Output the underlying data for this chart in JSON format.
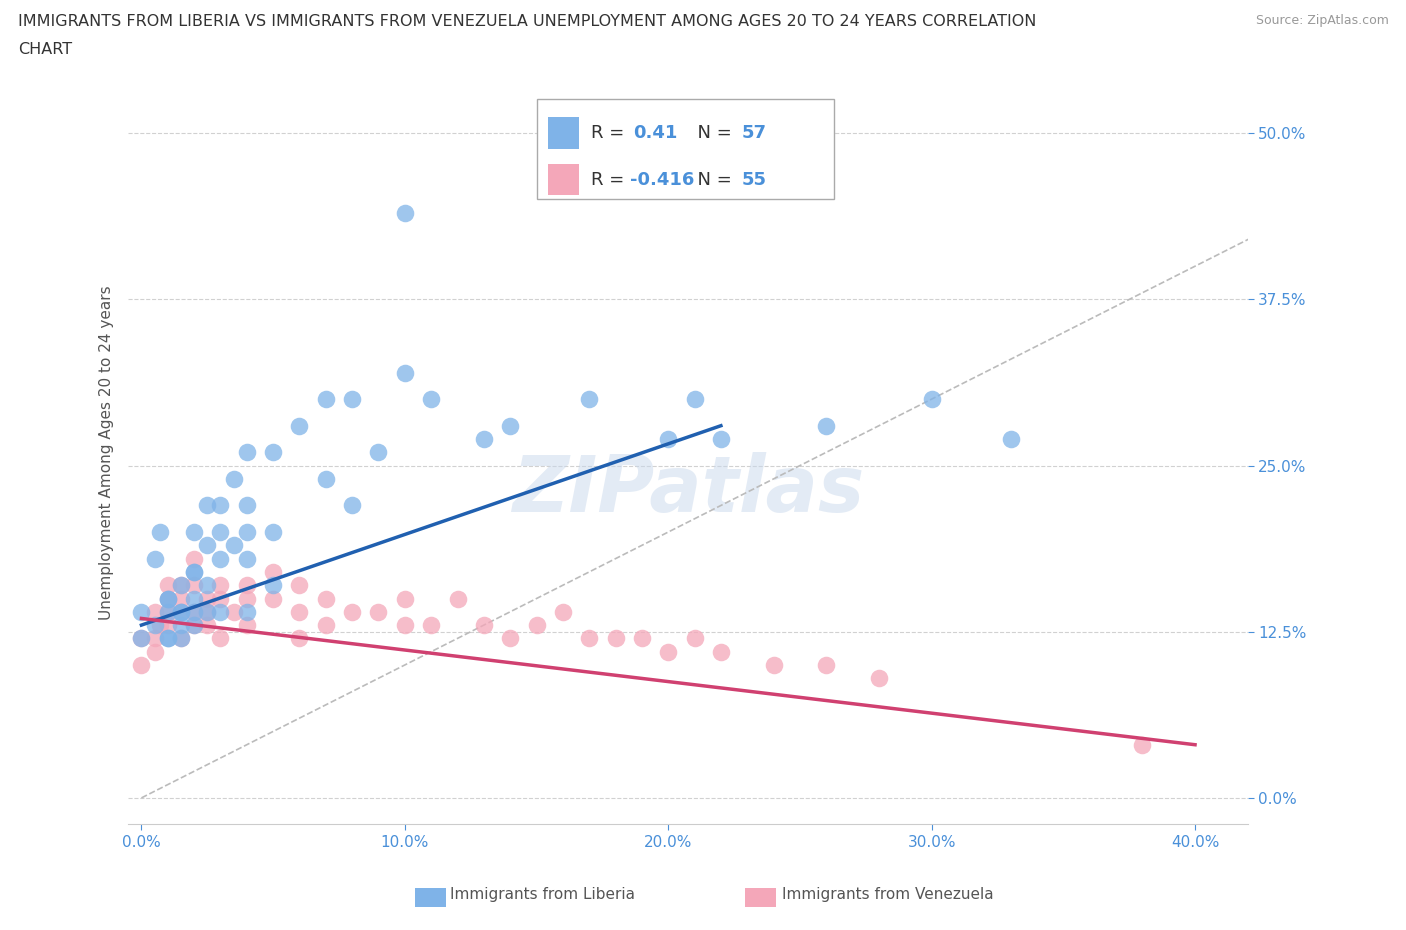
{
  "title_line1": "IMMIGRANTS FROM LIBERIA VS IMMIGRANTS FROM VENEZUELA UNEMPLOYMENT AMONG AGES 20 TO 24 YEARS CORRELATION",
  "title_line2": "CHART",
  "source_text": "Source: ZipAtlas.com",
  "ylabel": "Unemployment Among Ages 20 to 24 years",
  "xlim": [
    -0.005,
    0.42
  ],
  "ylim": [
    -0.02,
    0.54
  ],
  "xticks": [
    0.0,
    0.1,
    0.2,
    0.3,
    0.4
  ],
  "xtick_labels": [
    "0.0%",
    "10.0%",
    "20.0%",
    "30.0%",
    "40.0%"
  ],
  "ytick_positions": [
    0.0,
    0.125,
    0.25,
    0.375,
    0.5
  ],
  "ytick_labels": [
    "0.0%",
    "12.5%",
    "25.0%",
    "37.5%",
    "50.0%"
  ],
  "liberia_color": "#7fb3e8",
  "venezuela_color": "#f4a7b9",
  "liberia_line_color": "#2060b0",
  "venezuela_line_color": "#d04070",
  "diagonal_line_color": "#bbbbbb",
  "r_liberia": 0.41,
  "n_liberia": 57,
  "r_venezuela": -0.416,
  "n_venezuela": 55,
  "background_color": "#ffffff",
  "grid_color": "#cccccc",
  "watermark_text": "ZIPatlas",
  "legend_label_liberia": "Immigrants from Liberia",
  "legend_label_venezuela": "Immigrants from Venezuela",
  "liberia_scatter_x": [
    0.0,
    0.0,
    0.005,
    0.005,
    0.007,
    0.01,
    0.01,
    0.01,
    0.01,
    0.01,
    0.015,
    0.015,
    0.015,
    0.015,
    0.015,
    0.02,
    0.02,
    0.02,
    0.02,
    0.02,
    0.02,
    0.025,
    0.025,
    0.025,
    0.025,
    0.03,
    0.03,
    0.03,
    0.03,
    0.035,
    0.035,
    0.04,
    0.04,
    0.04,
    0.04,
    0.04,
    0.05,
    0.05,
    0.05,
    0.06,
    0.07,
    0.07,
    0.08,
    0.08,
    0.09,
    0.1,
    0.1,
    0.11,
    0.13,
    0.14,
    0.17,
    0.2,
    0.21,
    0.22,
    0.26,
    0.3,
    0.33
  ],
  "liberia_scatter_y": [
    0.14,
    0.12,
    0.13,
    0.18,
    0.2,
    0.15,
    0.15,
    0.14,
    0.12,
    0.12,
    0.14,
    0.16,
    0.14,
    0.13,
    0.12,
    0.2,
    0.17,
    0.17,
    0.15,
    0.14,
    0.13,
    0.22,
    0.19,
    0.16,
    0.14,
    0.22,
    0.2,
    0.18,
    0.14,
    0.24,
    0.19,
    0.26,
    0.22,
    0.2,
    0.18,
    0.14,
    0.26,
    0.2,
    0.16,
    0.28,
    0.3,
    0.24,
    0.3,
    0.22,
    0.26,
    0.44,
    0.32,
    0.3,
    0.27,
    0.28,
    0.3,
    0.27,
    0.3,
    0.27,
    0.28,
    0.3,
    0.27
  ],
  "venezuela_scatter_x": [
    0.0,
    0.0,
    0.005,
    0.005,
    0.005,
    0.007,
    0.01,
    0.01,
    0.01,
    0.01,
    0.015,
    0.015,
    0.015,
    0.015,
    0.02,
    0.02,
    0.02,
    0.02,
    0.025,
    0.025,
    0.025,
    0.03,
    0.03,
    0.03,
    0.035,
    0.04,
    0.04,
    0.04,
    0.05,
    0.05,
    0.06,
    0.06,
    0.06,
    0.07,
    0.07,
    0.08,
    0.09,
    0.1,
    0.1,
    0.11,
    0.12,
    0.13,
    0.14,
    0.15,
    0.16,
    0.17,
    0.18,
    0.19,
    0.2,
    0.21,
    0.22,
    0.24,
    0.26,
    0.28,
    0.38
  ],
  "venezuela_scatter_y": [
    0.12,
    0.1,
    0.14,
    0.12,
    0.11,
    0.13,
    0.16,
    0.15,
    0.14,
    0.13,
    0.16,
    0.15,
    0.14,
    0.12,
    0.18,
    0.16,
    0.14,
    0.13,
    0.15,
    0.14,
    0.13,
    0.16,
    0.15,
    0.12,
    0.14,
    0.16,
    0.15,
    0.13,
    0.17,
    0.15,
    0.16,
    0.14,
    0.12,
    0.15,
    0.13,
    0.14,
    0.14,
    0.15,
    0.13,
    0.13,
    0.15,
    0.13,
    0.12,
    0.13,
    0.14,
    0.12,
    0.12,
    0.12,
    0.11,
    0.12,
    0.11,
    0.1,
    0.1,
    0.09,
    0.04
  ],
  "liberia_trend_x": [
    0.0,
    0.22
  ],
  "liberia_trend_y": [
    0.13,
    0.28
  ],
  "venezuela_trend_x": [
    0.0,
    0.4
  ],
  "venezuela_trend_y": [
    0.135,
    0.04
  ]
}
